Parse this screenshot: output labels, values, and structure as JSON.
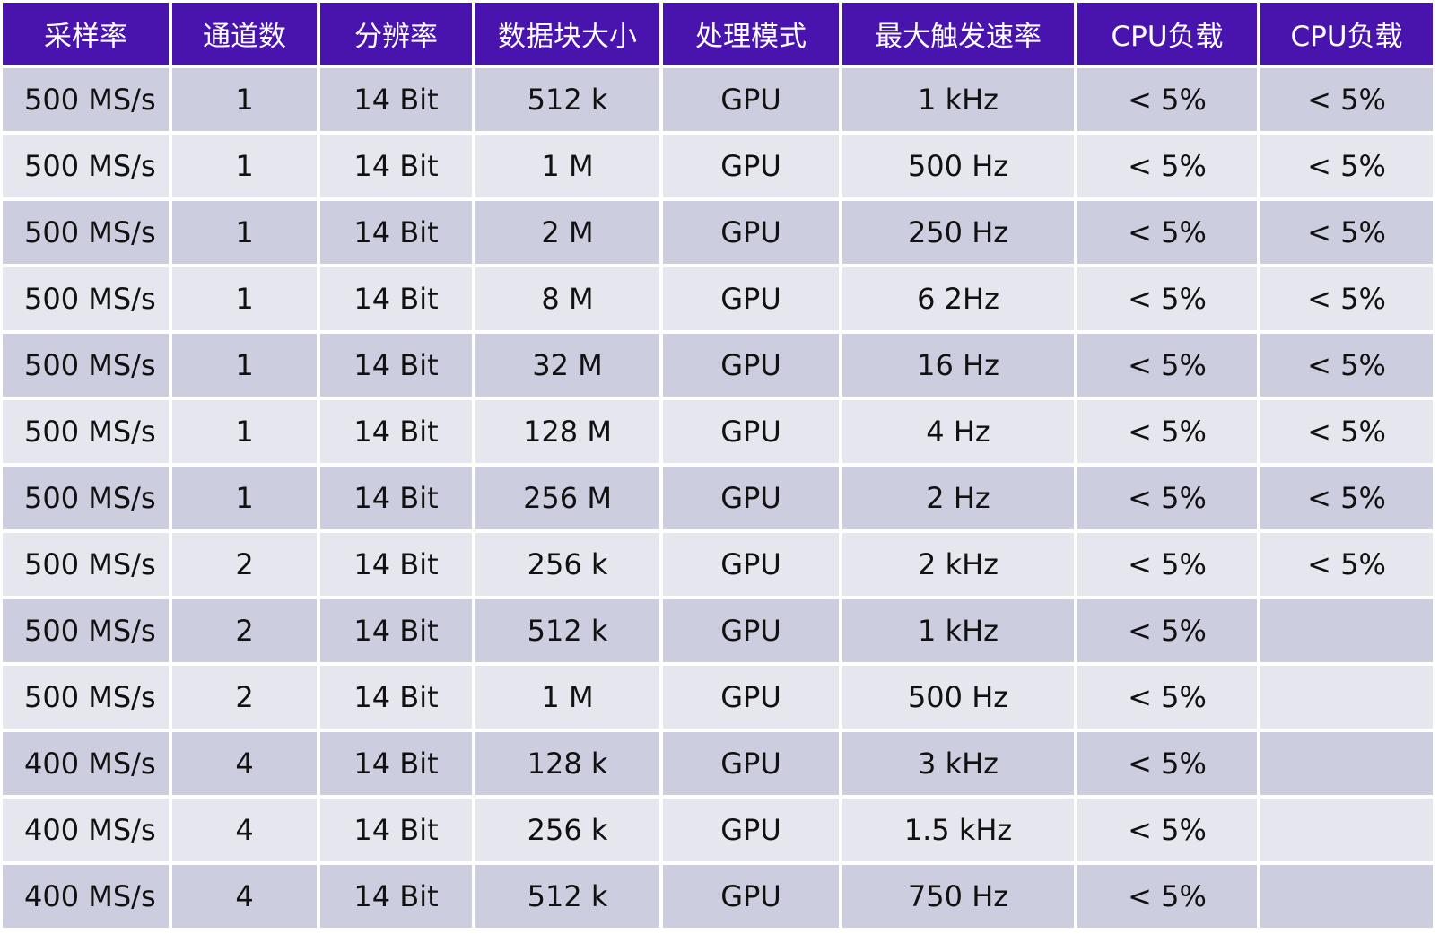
{
  "headers": [
    "采样率",
    "通道数",
    "分辨率",
    "数据块大小",
    "处理模式",
    "最大触发速率",
    "CPU负载",
    "CPU负载"
  ],
  "rows": [
    [
      "500 MS/s",
      "1",
      "14 Bit",
      "512 k",
      "GPU",
      "1 kHz",
      "< 5%",
      "< 5%"
    ],
    [
      "500 MS/s",
      "1",
      "14 Bit",
      "1 M",
      "GPU",
      "500 Hz",
      "< 5%",
      "< 5%"
    ],
    [
      "500 MS/s",
      "1",
      "14 Bit",
      "2 M",
      "GPU",
      "250 Hz",
      "< 5%",
      "< 5%"
    ],
    [
      "500 MS/s",
      "1",
      "14 Bit",
      "8 M",
      "GPU",
      "6 2Hz",
      "< 5%",
      "< 5%"
    ],
    [
      "500 MS/s",
      "1",
      "14 Bit",
      "32 M",
      "GPU",
      "16 Hz",
      "< 5%",
      "< 5%"
    ],
    [
      "500 MS/s",
      "1",
      "14 Bit",
      "128 M",
      "GPU",
      "4 Hz",
      "< 5%",
      "< 5%"
    ],
    [
      "500 MS/s",
      "1",
      "14 Bit",
      "256 M",
      "GPU",
      "2 Hz",
      "< 5%",
      "< 5%"
    ],
    [
      "500 MS/s",
      "2",
      "14 Bit",
      "256 k",
      "GPU",
      "2 kHz",
      "< 5%",
      "< 5%"
    ],
    [
      "500 MS/s",
      "2",
      "14 Bit",
      "512 k",
      "GPU",
      "1 kHz",
      "< 5%",
      ""
    ],
    [
      "500 MS/s",
      "2",
      "14 Bit",
      "1 M",
      "GPU",
      "500 Hz",
      "< 5%",
      ""
    ],
    [
      "400 MS/s",
      "4",
      "14 Bit",
      "128 k",
      "GPU",
      "3 kHz",
      "< 5%",
      ""
    ],
    [
      "400 MS/s",
      "4",
      "14 Bit",
      "256 k",
      "GPU",
      "1.5 kHz",
      "< 5%",
      ""
    ],
    [
      "400 MS/s",
      "4",
      "14 Bit",
      "512 k",
      "GPU",
      "750 Hz",
      "< 5%",
      ""
    ]
  ]
}
